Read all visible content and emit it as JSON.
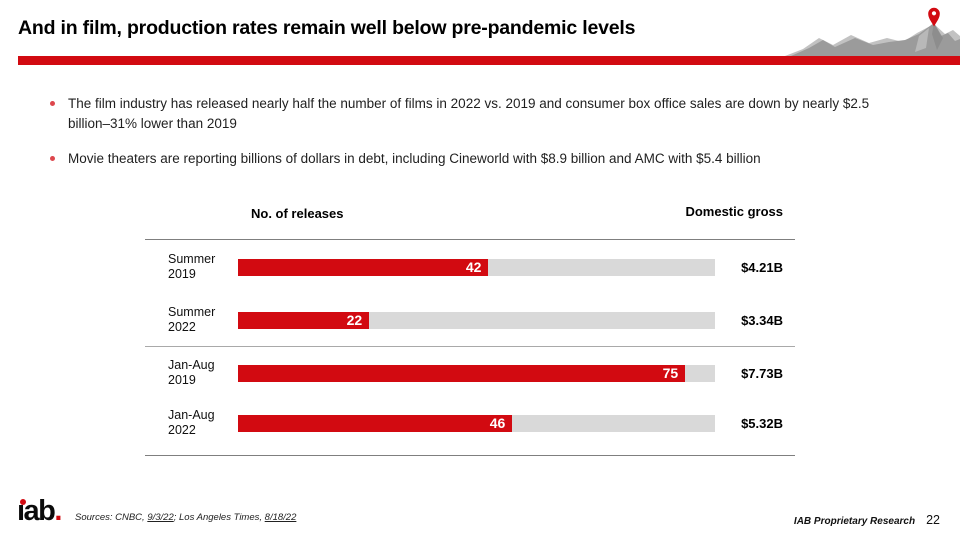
{
  "slide": {
    "title": "And in film, production rates remain well below pre-pandemic levels",
    "bullets": [
      "The film industry has released nearly half the number of films in 2022 vs. 2019 and consumer box office sales are down by nearly $2.5 billion–31% lower than 2019",
      "Movie theaters are reporting billions of dollars in debt, including Cineworld with $8.9 billion and AMC with $5.4 billion"
    ]
  },
  "chart_data": {
    "type": "bar",
    "orientation": "horizontal",
    "title": "",
    "col_headers": {
      "releases": "No. of releases",
      "gross": "Domestic gross"
    },
    "xlim": [
      0,
      80
    ],
    "grid": false,
    "legend": false,
    "rows": [
      {
        "period_line1": "Summer",
        "period_line2": "2019",
        "releases": 42,
        "gross": "$4.21B"
      },
      {
        "period_line1": "Summer",
        "period_line2": "2022",
        "releases": 22,
        "gross": "$3.34B"
      },
      {
        "period_line1": "Jan-Aug",
        "period_line2": "2019",
        "releases": 75,
        "gross": "$7.73B"
      },
      {
        "period_line1": "Jan-Aug",
        "period_line2": "2022",
        "releases": 46,
        "gross": "$5.32B"
      }
    ]
  },
  "footer": {
    "logo": {
      "text": "iab.",
      "body": "ıab",
      "period": "."
    },
    "sources_prefix": "Sources: CNBC, ",
    "source_link1": "9/3/22",
    "sources_mid": "; Los Angeles Times, ",
    "source_link2": "8/18/22",
    "proprietary": "IAB Proprietary Research",
    "page_number": "22"
  },
  "colors": {
    "brand_red": "#D20A11",
    "track_gray": "#D9D9D9",
    "line_dark": "#7f7f7f",
    "line_light": "#A9A9A9",
    "mountain_main": "#9B9B9B",
    "mountain_light": "#C2C2C2",
    "text_dark": "#1f1f1f"
  }
}
